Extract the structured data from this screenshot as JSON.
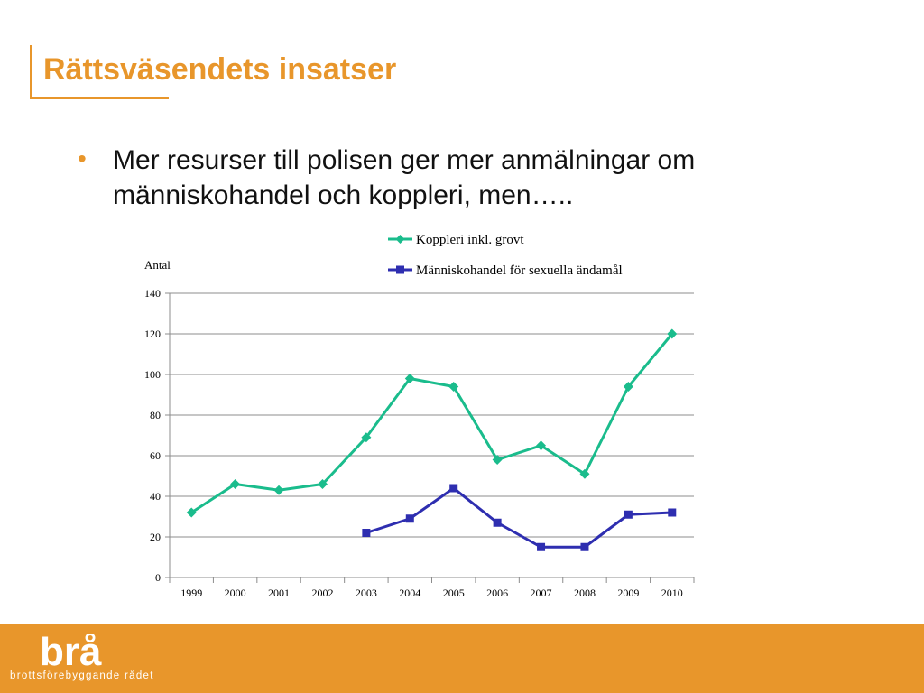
{
  "slide": {
    "title": "Rättsväsendets insatser",
    "bullets": [
      "Mer resurser till polisen ger mer anmälningar om människohandel och koppleri, men….."
    ]
  },
  "footer": {
    "logo_text": "brå",
    "org_name": "brottsförebyggande rådet",
    "background_color": "#E8962B"
  },
  "chart_data": {
    "type": "line",
    "title": "",
    "xlabel": "",
    "ylabel": "Antal",
    "categories": [
      "1999",
      "2000",
      "2001",
      "2002",
      "2003",
      "2004",
      "2005",
      "2006",
      "2007",
      "2008",
      "2009",
      "2010"
    ],
    "ylim": [
      0,
      140
    ],
    "yticks": [
      0,
      20,
      40,
      60,
      80,
      100,
      120,
      140
    ],
    "grid": true,
    "legend_position": "top-right",
    "series": [
      {
        "name": "Koppleri inkl. grovt",
        "color": "#1ABC8C",
        "marker": "diamond",
        "values": [
          32,
          46,
          43,
          46,
          69,
          98,
          94,
          58,
          65,
          51,
          94,
          120
        ]
      },
      {
        "name": "Människohandel för sexuella ändamål",
        "color": "#2E2EB0",
        "marker": "square",
        "values": [
          null,
          null,
          null,
          null,
          22,
          29,
          44,
          27,
          15,
          15,
          31,
          32
        ]
      }
    ]
  }
}
